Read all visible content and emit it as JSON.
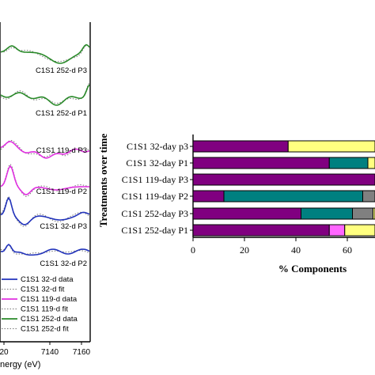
{
  "chart_data": [
    {
      "type": "line",
      "title": "",
      "xlabel": "nergy (eV)",
      "ylabel": "",
      "x_ticks": [
        "20",
        "7140",
        "7160"
      ],
      "x_range": [
        7113,
        7163
      ],
      "stack_labels": [
        "C1S1 252-d P3",
        "C1S1 252-d P1",
        "C1S1 119-d P3",
        "C1S1 119-d P2",
        "C1S1 32-d P3",
        "C1S1 32-d P2"
      ],
      "stack_colors": [
        "#2a8a2a",
        "#2a8a2a",
        "#e030e0",
        "#e030e0",
        "#2233bb",
        "#2233bb"
      ],
      "legend": [
        {
          "label": "C1S1 32-d data",
          "color": "#2233bb",
          "style": "solid"
        },
        {
          "label": "C1S1 32-d fit",
          "color": "#777777",
          "style": "dotted"
        },
        {
          "label": "C1S1 119-d data",
          "color": "#e030e0",
          "style": "solid"
        },
        {
          "label": "C1S1 119-d fit",
          "color": "#777777",
          "style": "dotted"
        },
        {
          "label": "C1S1 252-d data",
          "color": "#2a8a2a",
          "style": "solid"
        },
        {
          "label": "C1S1 252-d fit",
          "color": "#777777",
          "style": "dotted"
        }
      ]
    },
    {
      "type": "bar",
      "orientation": "horizontal",
      "stacked": true,
      "xlabel": "% Components",
      "ylabel": "Treatments over time",
      "xlim": [
        0,
        100
      ],
      "x_ticks": [
        "0",
        "20",
        "40",
        "60"
      ],
      "categories": [
        "C1S1 32-day p3",
        "C1S1 32-day P1",
        "C1S1 119-day P3",
        "C1S1 119-day P2",
        "C1S1 252-day P3",
        "C1S1 252-day P1"
      ],
      "series": [
        {
          "color": "#800080",
          "values": [
            37,
            53,
            100,
            12,
            42,
            53
          ]
        },
        {
          "color": "#ff66ff",
          "values": [
            0,
            0,
            0,
            0,
            0,
            6
          ]
        },
        {
          "color": "#008080",
          "values": [
            0,
            15,
            0,
            54,
            20,
            0
          ]
        },
        {
          "color": "#808080",
          "values": [
            0,
            0,
            0,
            10,
            8,
            0
          ]
        },
        {
          "color": "#ffff80",
          "values": [
            63,
            32,
            0,
            24,
            30,
            41
          ]
        }
      ]
    }
  ]
}
